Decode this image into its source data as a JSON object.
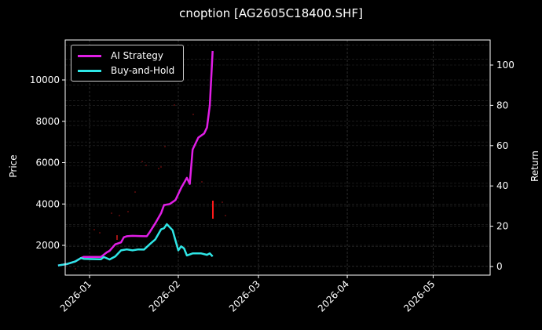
{
  "chart_data": {
    "type": "line",
    "title": "cnoption [AG2605C18400.SHF]",
    "xlabel": "",
    "ylabel": "Price",
    "ylabel_right": "Return",
    "x_ticks": [
      "2026-01",
      "2026-02",
      "2026-03",
      "2026-04",
      "2026-05"
    ],
    "y_ticks_left": [
      2000,
      4000,
      6000,
      8000,
      10000
    ],
    "y_ticks_right": [
      0,
      20,
      40,
      60,
      80,
      100
    ],
    "ylim_left": [
      600,
      11900
    ],
    "ylim_right": [
      -2,
      111
    ],
    "grid": true,
    "legend_position": "upper left",
    "background": "#000000",
    "series": [
      {
        "name": "AI Strategy",
        "color": "#e11ee6",
        "axis": "right",
        "x": [
          "2025-12-21",
          "2025-12-24",
          "2025-12-27",
          "2025-12-29",
          "2025-12-30",
          "2026-01-02",
          "2026-01-05",
          "2026-01-07",
          "2026-01-08",
          "2026-01-10",
          "2026-01-12",
          "2026-01-13",
          "2026-01-14",
          "2026-01-16",
          "2026-01-19",
          "2026-01-21",
          "2026-01-22",
          "2026-01-24",
          "2026-01-26",
          "2026-01-27",
          "2026-01-29",
          "2026-01-31",
          "2026-02-02",
          "2026-02-04",
          "2026-02-05",
          "2026-02-06",
          "2026-02-08",
          "2026-02-10",
          "2026-02-11",
          "2026-02-12",
          "2026-02-13"
        ],
        "values": [
          0.5,
          1.2,
          2.5,
          4.2,
          4.8,
          4.8,
          4.8,
          7.0,
          7.8,
          11.0,
          12.0,
          14.5,
          15.0,
          15.2,
          15.1,
          15.0,
          17.0,
          21.5,
          26.5,
          30.5,
          31.0,
          33.0,
          39.0,
          44.0,
          41.0,
          58.0,
          64.0,
          66.0,
          69.0,
          80.0,
          107.0
        ]
      },
      {
        "name": "Buy-and-Hold",
        "color": "#2ee6e6",
        "axis": "right",
        "x": [
          "2025-12-21",
          "2025-12-24",
          "2025-12-27",
          "2025-12-29",
          "2025-12-30",
          "2026-01-02",
          "2026-01-05",
          "2026-01-06",
          "2026-01-08",
          "2026-01-10",
          "2026-01-12",
          "2026-01-14",
          "2026-01-16",
          "2026-01-18",
          "2026-01-20",
          "2026-01-22",
          "2026-01-24",
          "2026-01-26",
          "2026-01-27",
          "2026-01-28",
          "2026-01-30",
          "2026-02-01",
          "2026-02-02",
          "2026-02-03",
          "2026-02-04",
          "2026-02-06",
          "2026-02-09",
          "2026-02-11",
          "2026-02-12",
          "2026-02-13"
        ],
        "values": [
          0.5,
          1.2,
          2.5,
          4.2,
          3.8,
          3.7,
          3.6,
          4.7,
          3.5,
          5.0,
          8.0,
          8.5,
          8.0,
          8.5,
          8.4,
          11.0,
          13.5,
          18.5,
          19.0,
          21.0,
          18.0,
          8.0,
          10.0,
          9.0,
          5.5,
          6.5,
          6.5,
          5.8,
          6.5,
          5.0
        ]
      }
    ],
    "scatter_points_red": "sparse faint red trade markers; notable vertical red segment near 2026-02-10 spanning approx price 3300-4200"
  },
  "legend": {
    "items": [
      {
        "label": "AI Strategy",
        "color": "#e11ee6"
      },
      {
        "label": "Buy-and-Hold",
        "color": "#2ee6e6"
      }
    ]
  }
}
